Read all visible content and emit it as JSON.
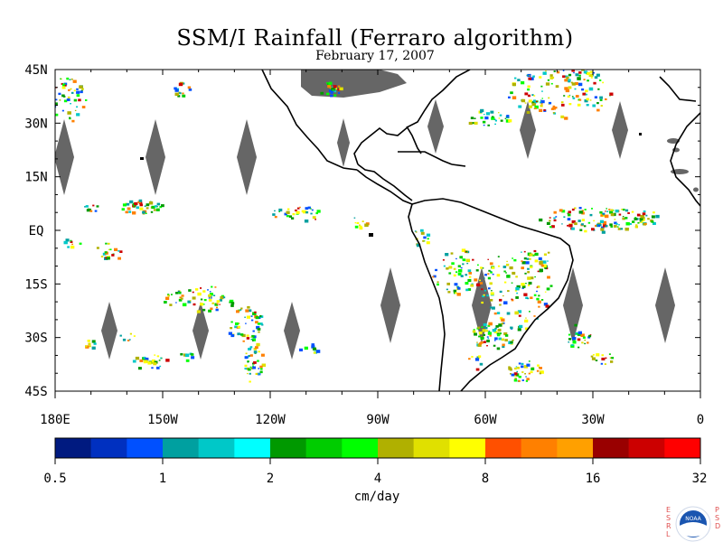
{
  "title": "SSM/I Rainfall (Ferraro algorithm)",
  "date": "February 17, 2007",
  "lat_labels": [
    "45N",
    "30N",
    "15N",
    "EQ",
    "15S",
    "30S",
    "45S"
  ],
  "lat_values": [
    45,
    30,
    15,
    0,
    -15,
    -30,
    -45
  ],
  "lon_labels": [
    "180E",
    "150W",
    "120W",
    "90W",
    "60W",
    "30W",
    "0"
  ],
  "lon_values": [
    -180,
    -150,
    -120,
    -90,
    -60,
    -30,
    0
  ],
  "colorbar": {
    "units": "cm/day",
    "tick_labels": [
      "0.5",
      "1",
      "2",
      "4",
      "8",
      "16",
      "32"
    ],
    "colors": [
      "#001a80",
      "#0030c0",
      "#0050ff",
      "#00a0a0",
      "#00c8c8",
      "#00ffff",
      "#009900",
      "#00cc00",
      "#00ff00",
      "#b0b000",
      "#e0e000",
      "#ffff00",
      "#ff5000",
      "#ff8000",
      "#ffa000",
      "#990000",
      "#cc0000",
      "#ff0000"
    ]
  },
  "map_colors": {
    "land": "#000000",
    "gap": "#666666",
    "ice": "#707070"
  },
  "logo": {
    "left": "E S R L",
    "center": "NOAA",
    "right": "P S D"
  }
}
